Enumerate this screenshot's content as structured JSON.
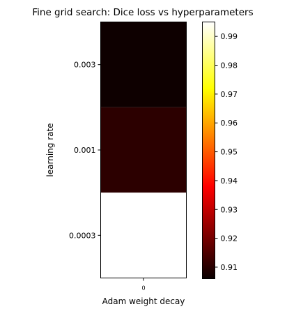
{
  "chart_data": {
    "type": "heatmap",
    "title": "Fine grid search: Dice loss vs hyperparameters",
    "xlabel": "Adam weight decay",
    "ylabel": "learning rate",
    "x_categories": [
      "0"
    ],
    "y_categories": [
      "0.003",
      "0.001",
      "0.0003"
    ],
    "values": [
      [
        0.906
      ],
      [
        0.914
      ],
      [
        0.995
      ]
    ],
    "colormap": "hot",
    "colorbar": {
      "vmin": 0.906,
      "vmax": 0.995,
      "ticks": [
        0.91,
        0.92,
        0.93,
        0.94,
        0.95,
        0.96,
        0.97,
        0.98,
        0.99
      ],
      "tick_labels": [
        "0.91",
        "0.92",
        "0.93",
        "0.94",
        "0.95",
        "0.96",
        "0.97",
        "0.98",
        "0.99"
      ]
    },
    "cell_colors": [
      "#0e0000",
      "#2c0000",
      "#ffffff"
    ]
  }
}
